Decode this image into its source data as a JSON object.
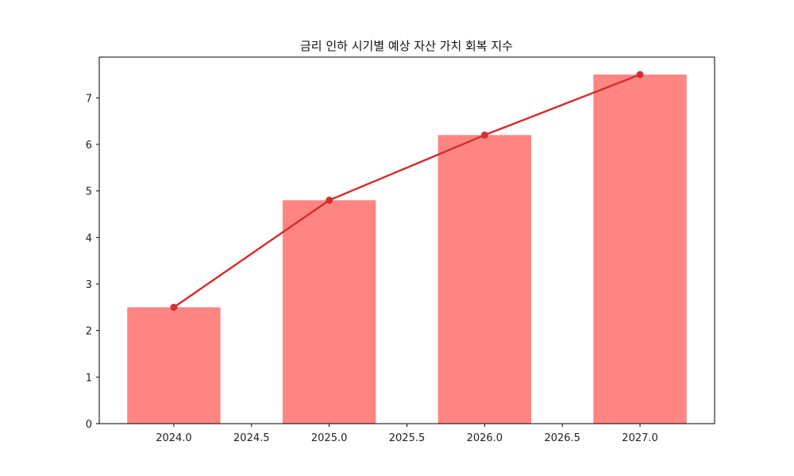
{
  "chart_data": {
    "type": "bar",
    "title": "금리 인하 시기별 예상 자산 가치 회복 지수",
    "xlabel": "",
    "ylabel": "",
    "x": [
      2024,
      2025,
      2026,
      2027
    ],
    "values": [
      2.5,
      4.8,
      6.2,
      7.5
    ],
    "bar_width": 0.6,
    "line_overlay": {
      "x": [
        2024,
        2025,
        2026,
        2027
      ],
      "values": [
        2.5,
        4.8,
        6.2,
        7.5
      ],
      "markers": true
    },
    "xlim": [
      2023.52,
      2027.48
    ],
    "ylim": [
      0,
      7.875
    ],
    "xticks": [
      2024.0,
      2024.5,
      2025.0,
      2025.5,
      2026.0,
      2026.5,
      2027.0
    ],
    "xtick_labels": [
      "2024.0",
      "2024.5",
      "2025.0",
      "2025.5",
      "2026.0",
      "2026.5",
      "2027.0"
    ],
    "yticks": [
      0,
      1,
      2,
      3,
      4,
      5,
      6,
      7
    ],
    "ytick_labels": [
      "0",
      "1",
      "2",
      "3",
      "4",
      "5",
      "6",
      "7"
    ],
    "grid": false,
    "legend": "none",
    "colors": {
      "bar": "#ff8583",
      "line": "#d33030",
      "marker": "#d33030",
      "axis": "#000000"
    }
  }
}
